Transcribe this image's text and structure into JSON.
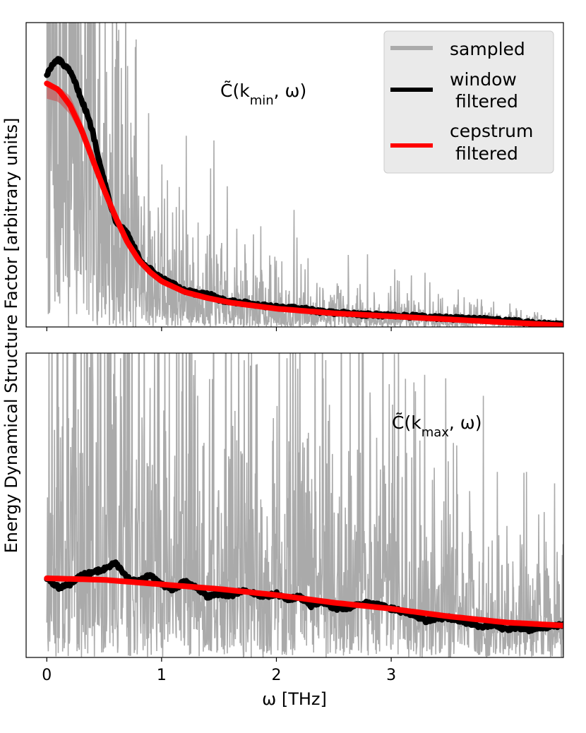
{
  "colors": {
    "sampled": "#aaaaaa",
    "window_filtered": "#000000",
    "cepstrum_filtered": "#ff0000",
    "band": "#d04545"
  },
  "shared": {
    "ylabel": "Energy Dynamical Structure Factor [arbitrary units]",
    "xlabel": "ω [THz]"
  },
  "chart_data": [
    {
      "type": "line",
      "panel": "top",
      "annotation": "C̃(k_min, ω)",
      "x_range": [
        -0.18,
        4.5
      ],
      "y_range": [
        0,
        1.0
      ],
      "xticks": [
        0,
        1,
        2,
        3
      ],
      "tick_labels_shown": false,
      "legend": {
        "placement": "top-right",
        "entries": [
          {
            "series": "sampled",
            "label_lines": [
              "sampled"
            ],
            "color": "#aaaaaa"
          },
          {
            "series": "window filtered",
            "label_lines": [
              "window",
              "filtered"
            ],
            "color": "#000000"
          },
          {
            "series": "cepstrum filtered",
            "label_lines": [
              "cepstrum",
              "filtered"
            ],
            "color": "#ff0000"
          }
        ]
      },
      "sampled_noise": {
        "seed": 7,
        "relative_amplitude": 1.0
      },
      "series": [
        {
          "name": "window filtered",
          "x": [
            0,
            0.05,
            0.1,
            0.15,
            0.2,
            0.25,
            0.3,
            0.35,
            0.4,
            0.45,
            0.5,
            0.55,
            0.6,
            0.65,
            0.7,
            0.75,
            0.8,
            0.85,
            0.9,
            0.95,
            1.0,
            1.1,
            1.2,
            1.3,
            1.4,
            1.5,
            1.6,
            1.8,
            2.0,
            2.2,
            2.4,
            2.6,
            2.8,
            3.0,
            3.2,
            3.4,
            3.6,
            3.8,
            4.0,
            4.2,
            4.4,
            4.5
          ],
          "y": [
            0.83,
            0.86,
            0.88,
            0.86,
            0.84,
            0.8,
            0.75,
            0.7,
            0.64,
            0.56,
            0.48,
            0.41,
            0.35,
            0.33,
            0.31,
            0.27,
            0.23,
            0.2,
            0.19,
            0.17,
            0.16,
            0.14,
            0.12,
            0.11,
            0.11,
            0.09,
            0.085,
            0.075,
            0.065,
            0.06,
            0.05,
            0.045,
            0.04,
            0.038,
            0.035,
            0.03,
            0.028,
            0.025,
            0.02,
            0.015,
            0.01,
            0.007
          ]
        },
        {
          "name": "cepstrum filtered",
          "x": [
            0,
            0.1,
            0.2,
            0.3,
            0.4,
            0.5,
            0.6,
            0.7,
            0.8,
            0.9,
            1.0,
            1.2,
            1.4,
            1.6,
            1.8,
            2.0,
            2.5,
            3.0,
            3.5,
            4.0,
            4.5
          ],
          "y": [
            0.8,
            0.78,
            0.73,
            0.65,
            0.55,
            0.45,
            0.36,
            0.28,
            0.22,
            0.18,
            0.15,
            0.115,
            0.095,
            0.08,
            0.07,
            0.06,
            0.045,
            0.035,
            0.025,
            0.015,
            0.005
          ],
          "band_low": [
            0.75,
            0.74,
            0.7,
            0.63,
            0.54,
            0.44,
            0.355,
            0.275,
            0.218,
            0.178,
            0.149,
            0.114,
            0.094,
            0.079,
            0.069,
            0.059,
            0.045,
            0.035,
            0.025,
            0.015,
            0.005
          ],
          "band_high": [
            0.8,
            0.79,
            0.76,
            0.68,
            0.575,
            0.465,
            0.37,
            0.285,
            0.225,
            0.182,
            0.152,
            0.117,
            0.096,
            0.081,
            0.071,
            0.061,
            0.046,
            0.036,
            0.026,
            0.016,
            0.006
          ]
        }
      ]
    },
    {
      "type": "line",
      "panel": "bottom",
      "annotation": "C̃(k_max, ω)",
      "x_range": [
        -0.18,
        4.5
      ],
      "y_range": [
        0,
        1.0
      ],
      "xticks": [
        0,
        1,
        2,
        3
      ],
      "xtick_labels": [
        "0",
        "1",
        "2",
        "3"
      ],
      "sampled_noise": {
        "seed": 13,
        "relative_amplitude": 1.6
      },
      "series": [
        {
          "name": "window filtered",
          "x": [
            0,
            0.1,
            0.2,
            0.3,
            0.4,
            0.5,
            0.6,
            0.7,
            0.8,
            0.9,
            1.0,
            1.1,
            1.2,
            1.3,
            1.4,
            1.5,
            1.6,
            1.7,
            1.8,
            1.9,
            2.0,
            2.1,
            2.2,
            2.3,
            2.4,
            2.5,
            2.6,
            2.7,
            2.8,
            2.9,
            3.0,
            3.1,
            3.2,
            3.3,
            3.4,
            3.5,
            3.6,
            3.7,
            3.8,
            3.9,
            4.0,
            4.1,
            4.2,
            4.3,
            4.4,
            4.5
          ],
          "y": [
            0.26,
            0.23,
            0.24,
            0.27,
            0.28,
            0.29,
            0.31,
            0.26,
            0.25,
            0.27,
            0.24,
            0.22,
            0.25,
            0.23,
            0.2,
            0.21,
            0.2,
            0.22,
            0.21,
            0.2,
            0.21,
            0.19,
            0.2,
            0.17,
            0.18,
            0.16,
            0.16,
            0.17,
            0.18,
            0.17,
            0.16,
            0.15,
            0.14,
            0.12,
            0.13,
            0.13,
            0.12,
            0.11,
            0.1,
            0.11,
            0.09,
            0.1,
            0.09,
            0.1,
            0.1,
            0.11
          ]
        },
        {
          "name": "cepstrum filtered",
          "x": [
            0,
            0.5,
            1.0,
            1.5,
            2.0,
            2.5,
            3.0,
            3.5,
            4.0,
            4.5
          ],
          "y": [
            0.26,
            0.255,
            0.24,
            0.225,
            0.205,
            0.18,
            0.16,
            0.135,
            0.115,
            0.105
          ],
          "band_low": [
            0.255,
            0.25,
            0.235,
            0.22,
            0.2,
            0.175,
            0.155,
            0.13,
            0.11,
            0.1
          ],
          "band_high": [
            0.265,
            0.26,
            0.245,
            0.23,
            0.21,
            0.185,
            0.165,
            0.14,
            0.12,
            0.11
          ]
        }
      ]
    }
  ]
}
